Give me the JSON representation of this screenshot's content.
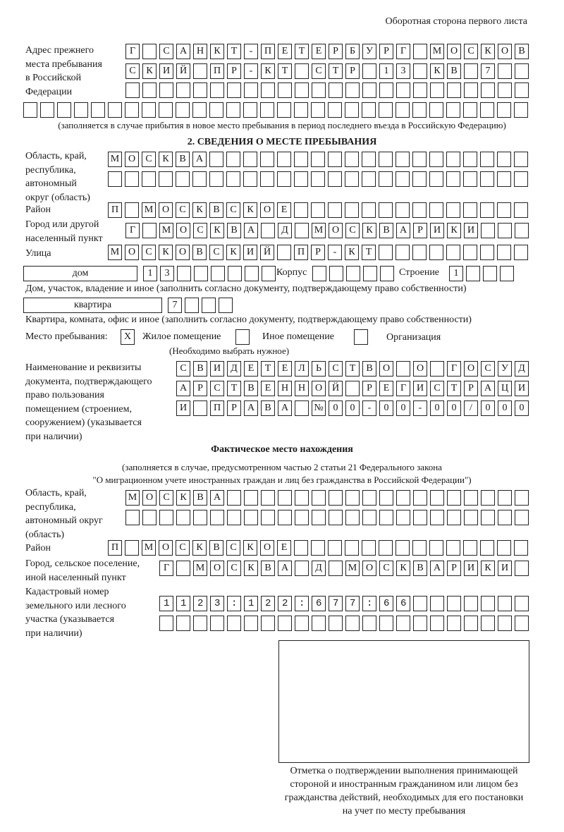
{
  "header": {
    "page_side": "Оборотная сторона первого листа"
  },
  "previous_address": {
    "label": [
      "Адрес прежнего",
      "места пребывания",
      "в Российской",
      "Федерации"
    ],
    "rows": [
      "Г САНКТ-ПЕТЕРБУРГ МОСКОВ",
      "СКИЙ ПР-КТ СТР 13 КВ 7",
      "",
      ""
    ],
    "note": "(заполняется в случае прибытия в новое место пребывания в период последнего въезда в Российскую Федерацию)"
  },
  "section2": {
    "title": "2. СВЕДЕНИЯ О МЕСТЕ ПРЕБЫВАНИЯ",
    "region_label": [
      "Область, край,",
      "республика,",
      "автономный",
      "округ (область)"
    ],
    "region_rows": [
      "МОСКВА",
      ""
    ],
    "district_label": "Район",
    "district_row": "П МОСКВСКОЕ",
    "city_label": [
      "Город или другой",
      "населенный пункт"
    ],
    "city_row": "Г МОСКВА Д МОСКВАРИКИ",
    "street_label": "Улица",
    "street_row": "МОСКОВСКИЙ ПР-КТ",
    "house_type": "дом",
    "house_number": "13",
    "korpus_label": "Корпус",
    "korpus": "",
    "building_label": "Строение",
    "building": "1",
    "house_note": "Дом, участок, владение и иное (заполнить согласно документу, подтверждающему право собственности)",
    "apartment_type": "квартира",
    "apartment_number": "7",
    "apartment_note": "Квартира, комната, офис и иное (заполнить согласно документу, подтверждающему право собственности)",
    "stay_place_label": "Место пребывания:",
    "options": [
      {
        "label": "Жилое помещение",
        "checked": true,
        "mark": "X"
      },
      {
        "label": "Иное помещение",
        "checked": false,
        "mark": ""
      },
      {
        "label": "Организация",
        "checked": false,
        "mark": ""
      }
    ],
    "choose_note": "(Необходимо выбрать нужное)",
    "document_label": [
      "Наименование и реквизиты",
      "документа, подтверждающего",
      "право пользования",
      "помещением (строением,",
      "сооружением) (указывается",
      "при наличии)"
    ],
    "document_rows": [
      "СВИДЕТЕЛЬСТВО О ГОСУД",
      "АРСТВЕННОЙ РЕГИСТРАЦИ",
      "И ПРАВА №00-00-00/000"
    ]
  },
  "actual_location": {
    "title": "Фактическое место нахождения",
    "note": [
      "(заполняется в случае, предусмотренном частью 2 статьи 21 Федерального закона",
      "\"О миграционном учете иностранных граждан и лиц без гражданства в Российской Федерации\")"
    ],
    "region_label": [
      "Область, край,",
      "республика,",
      "автономный округ",
      "(область)"
    ],
    "region_rows": [
      "МОСКВА",
      ""
    ],
    "district_label": "Район",
    "district_row": "П МОСКВСКОЕ",
    "city_label": [
      "Город, сельское поселение,",
      "иной населенный пункт"
    ],
    "city_row": "Г МОСКВА Д МОСКВАРИКИ",
    "cadastre_label": [
      "Кадастровый номер",
      "земельного или лесного",
      "участка (указывается",
      "при наличии)"
    ],
    "cadastre_rows": [
      "1123:122:677:66",
      ""
    ]
  },
  "confirmation": {
    "caption": [
      "Отметка о подтверждении выполнения принимающей",
      "стороной и иностранным гражданином или лицом без",
      "гражданства действий, необходимых для его постановки",
      "на учет по месту пребывания"
    ]
  }
}
